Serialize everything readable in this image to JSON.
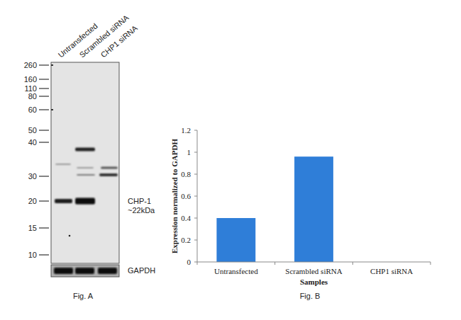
{
  "chart_data": {
    "type": "bar",
    "x_label": "Samples",
    "y_label": "Expression normalized to GAPDH",
    "categories": [
      "Untransfected",
      "Scrambled siRNA",
      "CHP1 siRNA"
    ],
    "values": [
      0.4,
      0.96,
      0
    ],
    "color": "#2f7ed8",
    "ylim": [
      0,
      1.2
    ],
    "yticks": [
      0,
      0.2,
      0.4,
      0.6,
      0.8,
      1,
      1.2
    ],
    "grid": false
  },
  "blot": {
    "lanes": [
      "Untransfected",
      "Scrambled siRNA",
      "CHP1 siRNA"
    ],
    "markers": [
      260,
      160,
      110,
      80,
      60,
      50,
      40,
      30,
      20,
      15,
      10
    ],
    "band_label": [
      "CHP-1",
      "~22kDa"
    ],
    "loading_control": "GAPDH"
  },
  "figure_labels": [
    "Fig. A",
    "Fig. B"
  ]
}
